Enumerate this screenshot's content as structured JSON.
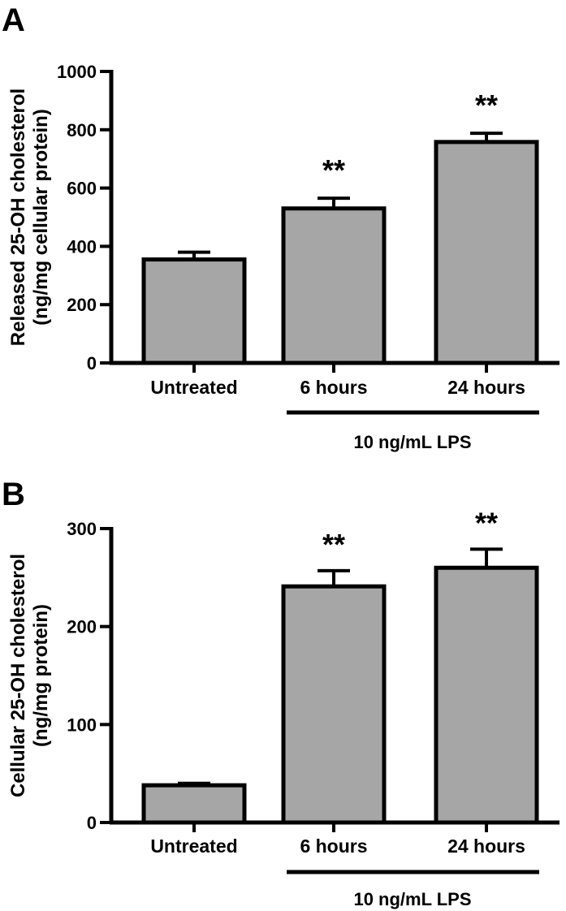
{
  "chart_data": [
    {
      "type": "bar",
      "panel_label": "A",
      "ylabel_line1": "Released 25-OH cholesterol",
      "ylabel_line2": "(ng/mg cellular protein)",
      "categories": [
        "Untreated",
        "6 hours",
        "24 hours"
      ],
      "values": [
        355,
        530,
        758
      ],
      "errors": [
        25,
        35,
        30
      ],
      "significance": [
        "",
        "**",
        "**"
      ],
      "yticks": [
        0,
        200,
        400,
        600,
        800,
        1000
      ],
      "ylim": [
        0,
        1000
      ],
      "group_label": "10 ng/mL LPS",
      "bar_color": "#a6a6a6"
    },
    {
      "type": "bar",
      "panel_label": "B",
      "ylabel_line1": "Cellular 25-OH cholesterol",
      "ylabel_line2": "(ng/mg protein)",
      "categories": [
        "Untreated",
        "6 hours",
        "24 hours"
      ],
      "values": [
        38,
        241,
        260
      ],
      "errors": [
        2,
        16,
        19
      ],
      "significance": [
        "",
        "**",
        "**"
      ],
      "yticks": [
        0,
        100,
        200,
        300
      ],
      "ylim": [
        0,
        300
      ],
      "group_label": "10 ng/mL LPS",
      "bar_color": "#a6a6a6"
    }
  ]
}
